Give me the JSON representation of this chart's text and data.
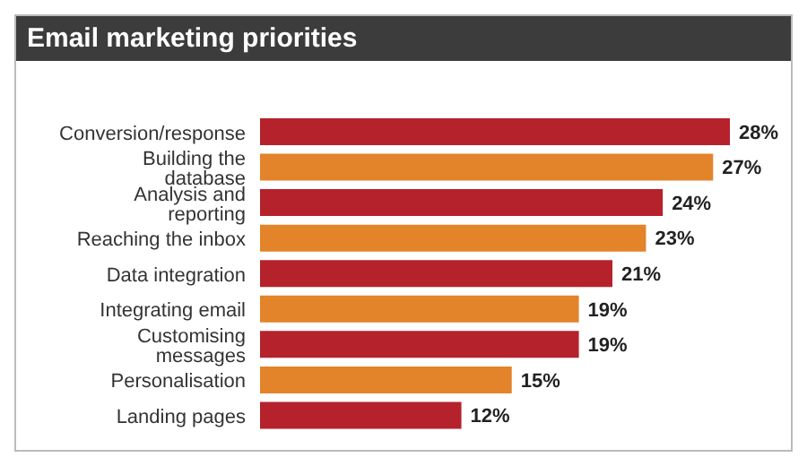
{
  "chart_data": {
    "type": "bar",
    "orientation": "horizontal",
    "title": "Email marketing priorities",
    "categories": [
      "Conversion/response",
      "Building the database",
      "Analysis and reporting",
      "Reaching the inbox",
      "Data integration",
      "Integrating email",
      "Customising messages",
      "Personalisation",
      "Landing pages"
    ],
    "values": [
      28,
      27,
      24,
      23,
      21,
      19,
      19,
      15,
      12
    ],
    "colors": [
      "#b5222b",
      "#e3832a",
      "#b5222b",
      "#e3832a",
      "#b5222b",
      "#e3832a",
      "#b5222b",
      "#e3832a",
      "#b5222b"
    ],
    "value_labels": [
      "28%",
      "27%",
      "24%",
      "23%",
      "21%",
      "19%",
      "19%",
      "15%",
      "12%"
    ],
    "grid": false,
    "legend": false
  }
}
